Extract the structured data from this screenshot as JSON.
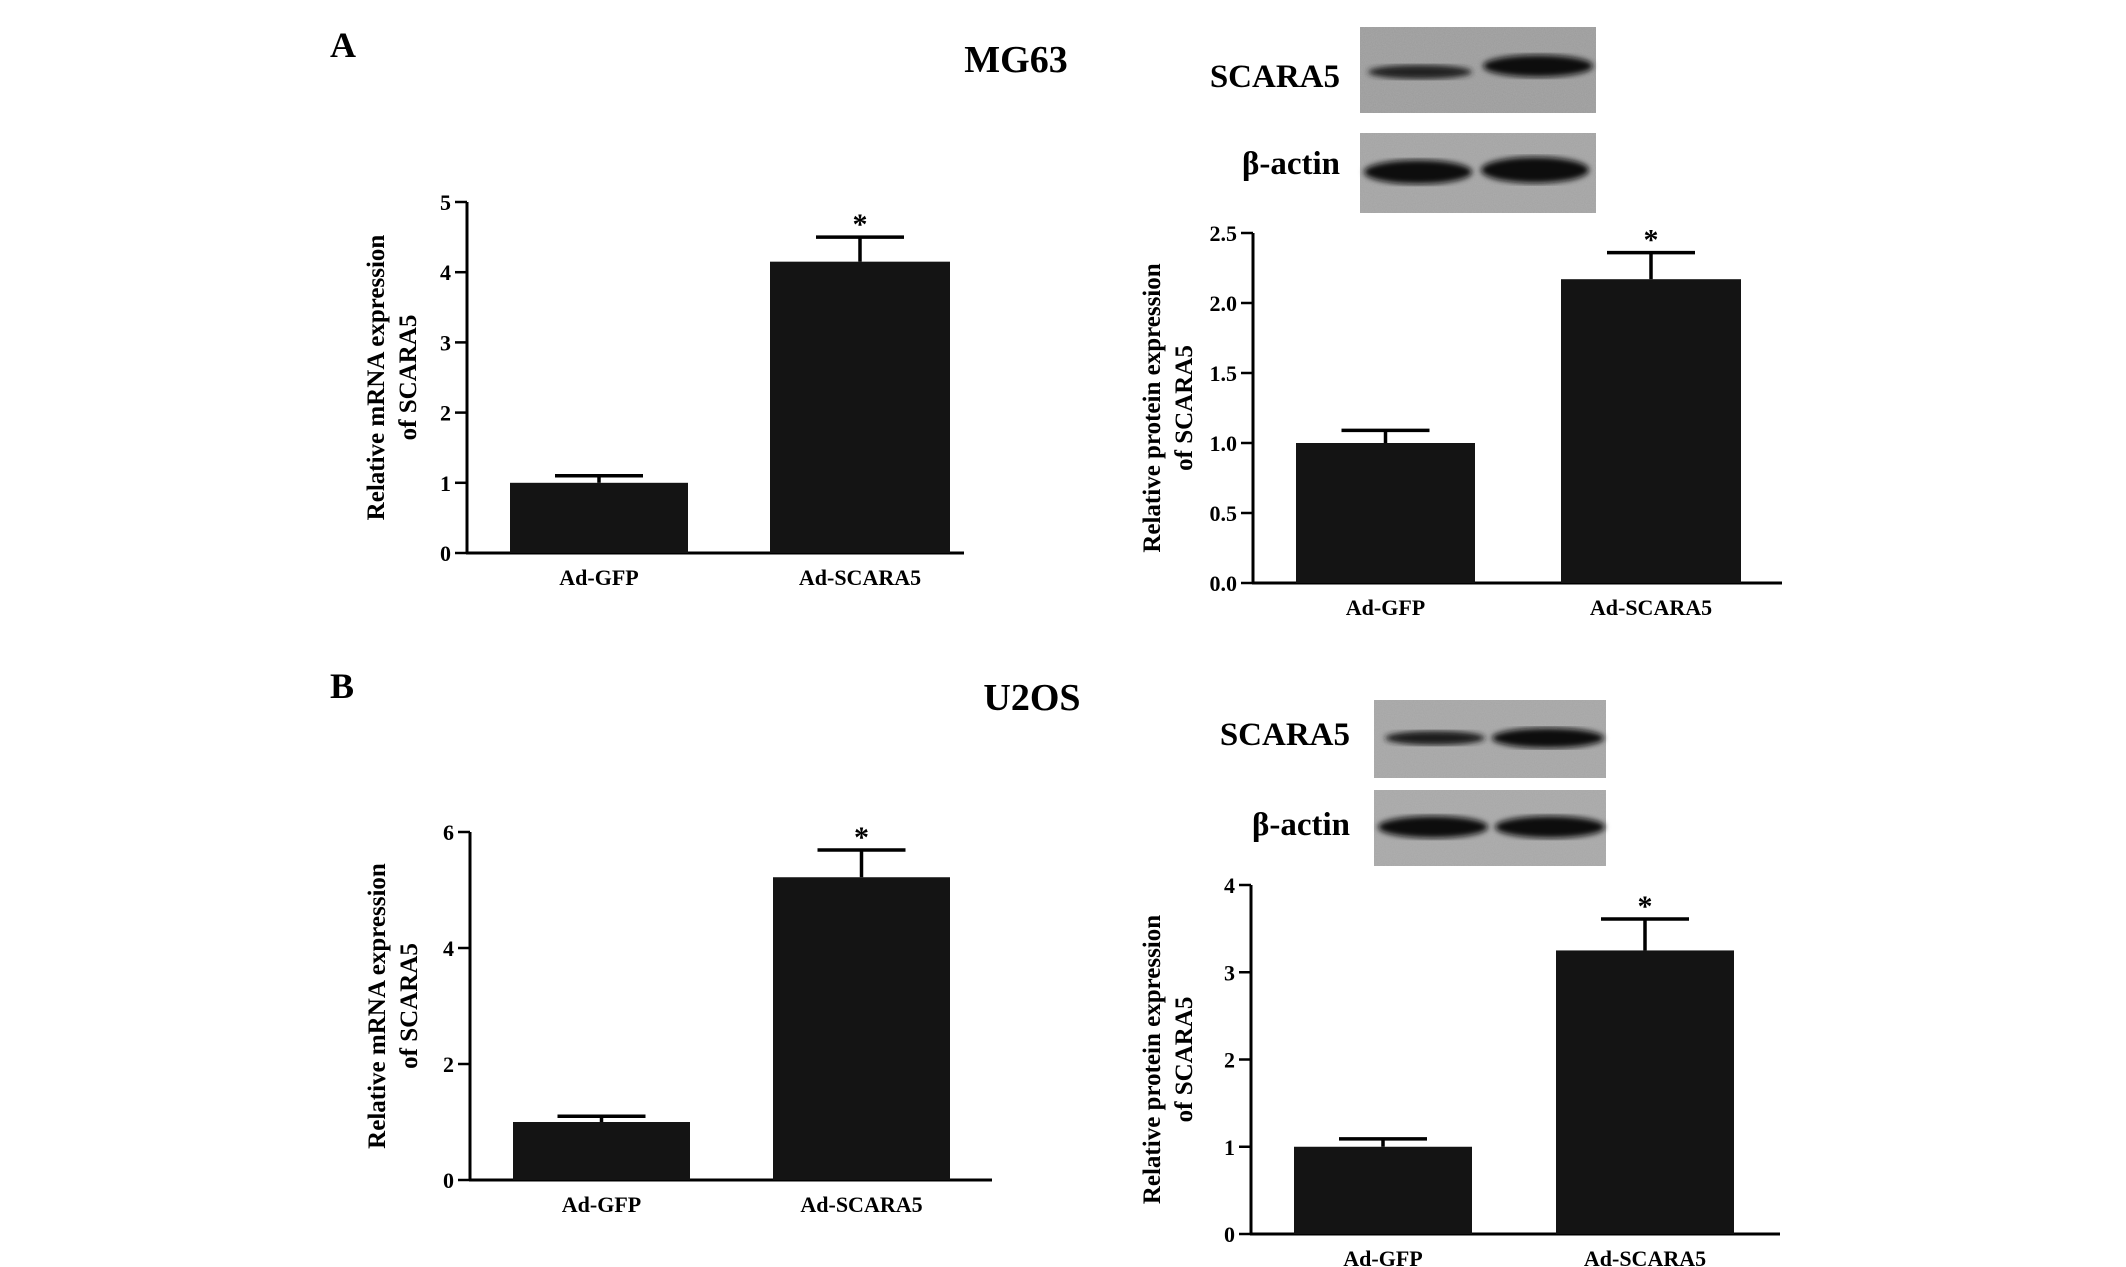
{
  "panels": [
    {
      "letter": "A",
      "cell_line": "MG63",
      "blots": [
        "SCARA5",
        "β-actin"
      ]
    },
    {
      "letter": "B",
      "cell_line": "U2OS",
      "blots": [
        "SCARA5",
        "β-actin"
      ]
    }
  ],
  "chart_data": [
    {
      "type": "bar",
      "panel": "A",
      "categories": [
        "Ad-GFP",
        "Ad-SCARA5"
      ],
      "values": [
        1.0,
        4.15
      ],
      "errors": [
        0.1,
        0.35
      ],
      "significance": [
        "",
        "*"
      ],
      "ylabel": [
        "Relative mRNA expression",
        "of SCARA5"
      ],
      "ylim": [
        0,
        5
      ],
      "yticks": [
        "0",
        "1",
        "2",
        "3",
        "4",
        "5"
      ],
      "colors": {
        "bar": "#141414"
      }
    },
    {
      "type": "bar",
      "panel": "A",
      "categories": [
        "Ad-GFP",
        "Ad-SCARA5"
      ],
      "values": [
        1.0,
        2.17
      ],
      "errors": [
        0.09,
        0.19
      ],
      "significance": [
        "",
        "*"
      ],
      "ylabel": [
        "Relative protein expression",
        "of SCARA5"
      ],
      "ylim": [
        0,
        2.5
      ],
      "yticks": [
        "0.0",
        "0.5",
        "1.0",
        "1.5",
        "2.0",
        "2.5"
      ],
      "colors": {
        "bar": "#141414"
      }
    },
    {
      "type": "bar",
      "panel": "B",
      "categories": [
        "Ad-GFP",
        "Ad-SCARA5"
      ],
      "values": [
        1.0,
        5.22
      ],
      "errors": [
        0.1,
        0.47
      ],
      "significance": [
        "",
        "*"
      ],
      "ylabel": [
        "Relative mRNA expression",
        "of SCARA5"
      ],
      "ylim": [
        0,
        6
      ],
      "yticks": [
        "0",
        "2",
        "4",
        "6"
      ],
      "colors": {
        "bar": "#141414"
      }
    },
    {
      "type": "bar",
      "panel": "B",
      "categories": [
        "Ad-GFP",
        "Ad-SCARA5"
      ],
      "values": [
        1.0,
        3.25
      ],
      "errors": [
        0.09,
        0.36
      ],
      "significance": [
        "",
        "*"
      ],
      "ylabel": [
        "Relative protein expression",
        "of SCARA5"
      ],
      "ylim": [
        0,
        4
      ],
      "yticks": [
        "0",
        "1",
        "2",
        "3",
        "4"
      ],
      "colors": {
        "bar": "#141414"
      }
    }
  ]
}
